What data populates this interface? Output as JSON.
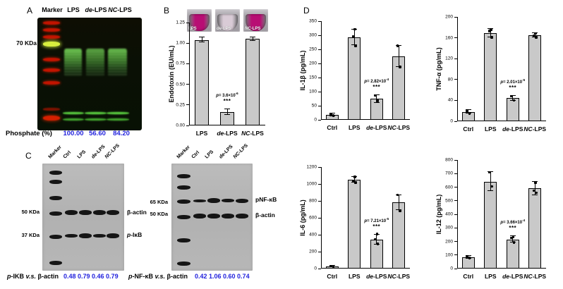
{
  "colors": {
    "accent_blue": "#2222dd",
    "bar_fill": "#c9c9c9",
    "marker_red": "#c21400",
    "marker_yellow": "#d8ee3e",
    "gel_green": "#55c23c",
    "tube_magenta": "#b80e74",
    "tube_pale": "#d9cbd6"
  },
  "panelA": {
    "label": "A",
    "lanes": [
      "Marker",
      "LPS",
      "de-LPS",
      "NC-LPS"
    ],
    "marker_weight": "70 KDa",
    "phosphate_label": "Phosphate (%)",
    "phosphate_values": [
      "100.00",
      "56.60",
      "84.20"
    ]
  },
  "panelB": {
    "label": "B",
    "tubes": [
      {
        "label": "LPS",
        "color": "#b80e74"
      },
      {
        "label": "de-LPS",
        "color": "#d9cbd6"
      },
      {
        "label": "NC-LPS",
        "color": "#b80e74"
      }
    ]
  },
  "panelC": {
    "label": "C",
    "blots": [
      {
        "lanes": [
          "Marker",
          "Ctrl",
          "LPS",
          "de-LPS",
          "NC-LPS"
        ],
        "kda": [
          "50 KDa",
          "37 KDa"
        ],
        "proteins": [
          "β-actin",
          "p-IκB"
        ],
        "ratio_label": "p-IKB v.s. β-actin",
        "ratio_values": "0.48 0.79 0.46 0.79"
      },
      {
        "lanes": [
          "Marker",
          "Ctrl",
          "LPS",
          "de-LPS",
          "NC-LPS"
        ],
        "kda": [
          "65 KDa",
          "50 KDa"
        ],
        "proteins": [
          "pNF-κB",
          "β-actin"
        ],
        "ratio_label": "p-NF-κB v.s. β-actin",
        "ratio_values": "0.42 1.06 0.60 0.74"
      }
    ]
  },
  "panelD": {
    "label": "D"
  },
  "chart_data": [
    {
      "id": "endotoxin",
      "type": "bar",
      "title": "",
      "ylabel": "Endotoxin (EU/mL)",
      "xlabel": "",
      "categories": [
        "LPS",
        "de-LPS",
        "NC-LPS"
      ],
      "values": [
        1.04,
        0.16,
        1.05
      ],
      "errors": [
        0.03,
        0.035,
        0.02
      ],
      "points": [
        [],
        [],
        []
      ],
      "ylim": [
        0,
        1.25
      ],
      "ystep": 0.25,
      "annotation": {
        "bar": 1,
        "text": "p= 3.6×10",
        "exp": "-6",
        "stars": "***"
      }
    },
    {
      "id": "il1b",
      "type": "bar",
      "title": "",
      "ylabel": "IL-1β (pg/mL)",
      "xlabel": "",
      "categories": [
        "Ctrl",
        "LPS",
        "de-LPS",
        "NC-LPS"
      ],
      "values": [
        17,
        293,
        74,
        225
      ],
      "errors": [
        5,
        28,
        13,
        38
      ],
      "points": [
        [
          15,
          20
        ],
        [
          263,
          295,
          321
        ],
        [
          67,
          86
        ],
        [
          188,
          262
        ]
      ],
      "ylim": [
        0,
        350
      ],
      "ystep": 50,
      "annotation": {
        "bar": 2,
        "text": "p= 2.82×10",
        "exp": "-4",
        "stars": "***"
      }
    },
    {
      "id": "tnfa",
      "type": "bar",
      "title": "",
      "ylabel": "TNF-α (pg/mL)",
      "xlabel": "",
      "categories": [
        "Ctrl",
        "LPS",
        "de-LPS",
        "NC-LPS"
      ],
      "values": [
        18,
        169,
        44,
        165
      ],
      "errors": [
        3,
        8,
        5,
        4
      ],
      "points": [
        [
          15,
          20
        ],
        [
          161,
          173,
          176
        ],
        [
          40,
          48
        ],
        [
          161,
          164,
          168
        ]
      ],
      "ylim": [
        0,
        200
      ],
      "ystep": 40,
      "annotation": {
        "bar": 2,
        "text": "p= 2.01×10",
        "exp": "-5",
        "stars": "***"
      }
    },
    {
      "id": "il6",
      "type": "bar",
      "title": "",
      "ylabel": "IL-6 (pg/mL)",
      "xlabel": "",
      "categories": [
        "Ctrl",
        "LPS",
        "de-LPS",
        "NC-LPS"
      ],
      "values": [
        25,
        1050,
        340,
        780
      ],
      "errors": [
        10,
        35,
        60,
        90
      ],
      "points": [
        [
          22,
          30
        ],
        [
          1015,
          1032,
          1085
        ],
        [
          290,
          345,
          408
        ],
        [
          685,
          870
        ]
      ],
      "ylim": [
        0,
        1200
      ],
      "ystep": 200,
      "annotation": {
        "bar": 2,
        "text": "p= 7.21×10",
        "exp": "-5",
        "stars": "***"
      }
    },
    {
      "id": "il12",
      "type": "bar",
      "title": "",
      "ylabel": "IL-12 (pg/mL)",
      "xlabel": "",
      "categories": [
        "Ctrl",
        "LPS",
        "de-LPS",
        "NC-LPS"
      ],
      "values": [
        85,
        640,
        215,
        590
      ],
      "errors": [
        10,
        70,
        25,
        48
      ],
      "points": [
        [
          78,
          92
        ],
        [
          605,
          708
        ],
        [
          192,
          225,
          235
        ],
        [
          558,
          575,
          635
        ]
      ],
      "ylim": [
        0,
        800
      ],
      "ystep": 100,
      "annotation": {
        "bar": 2,
        "text": "p= 3.66×10",
        "exp": "-4",
        "stars": "***"
      }
    }
  ]
}
